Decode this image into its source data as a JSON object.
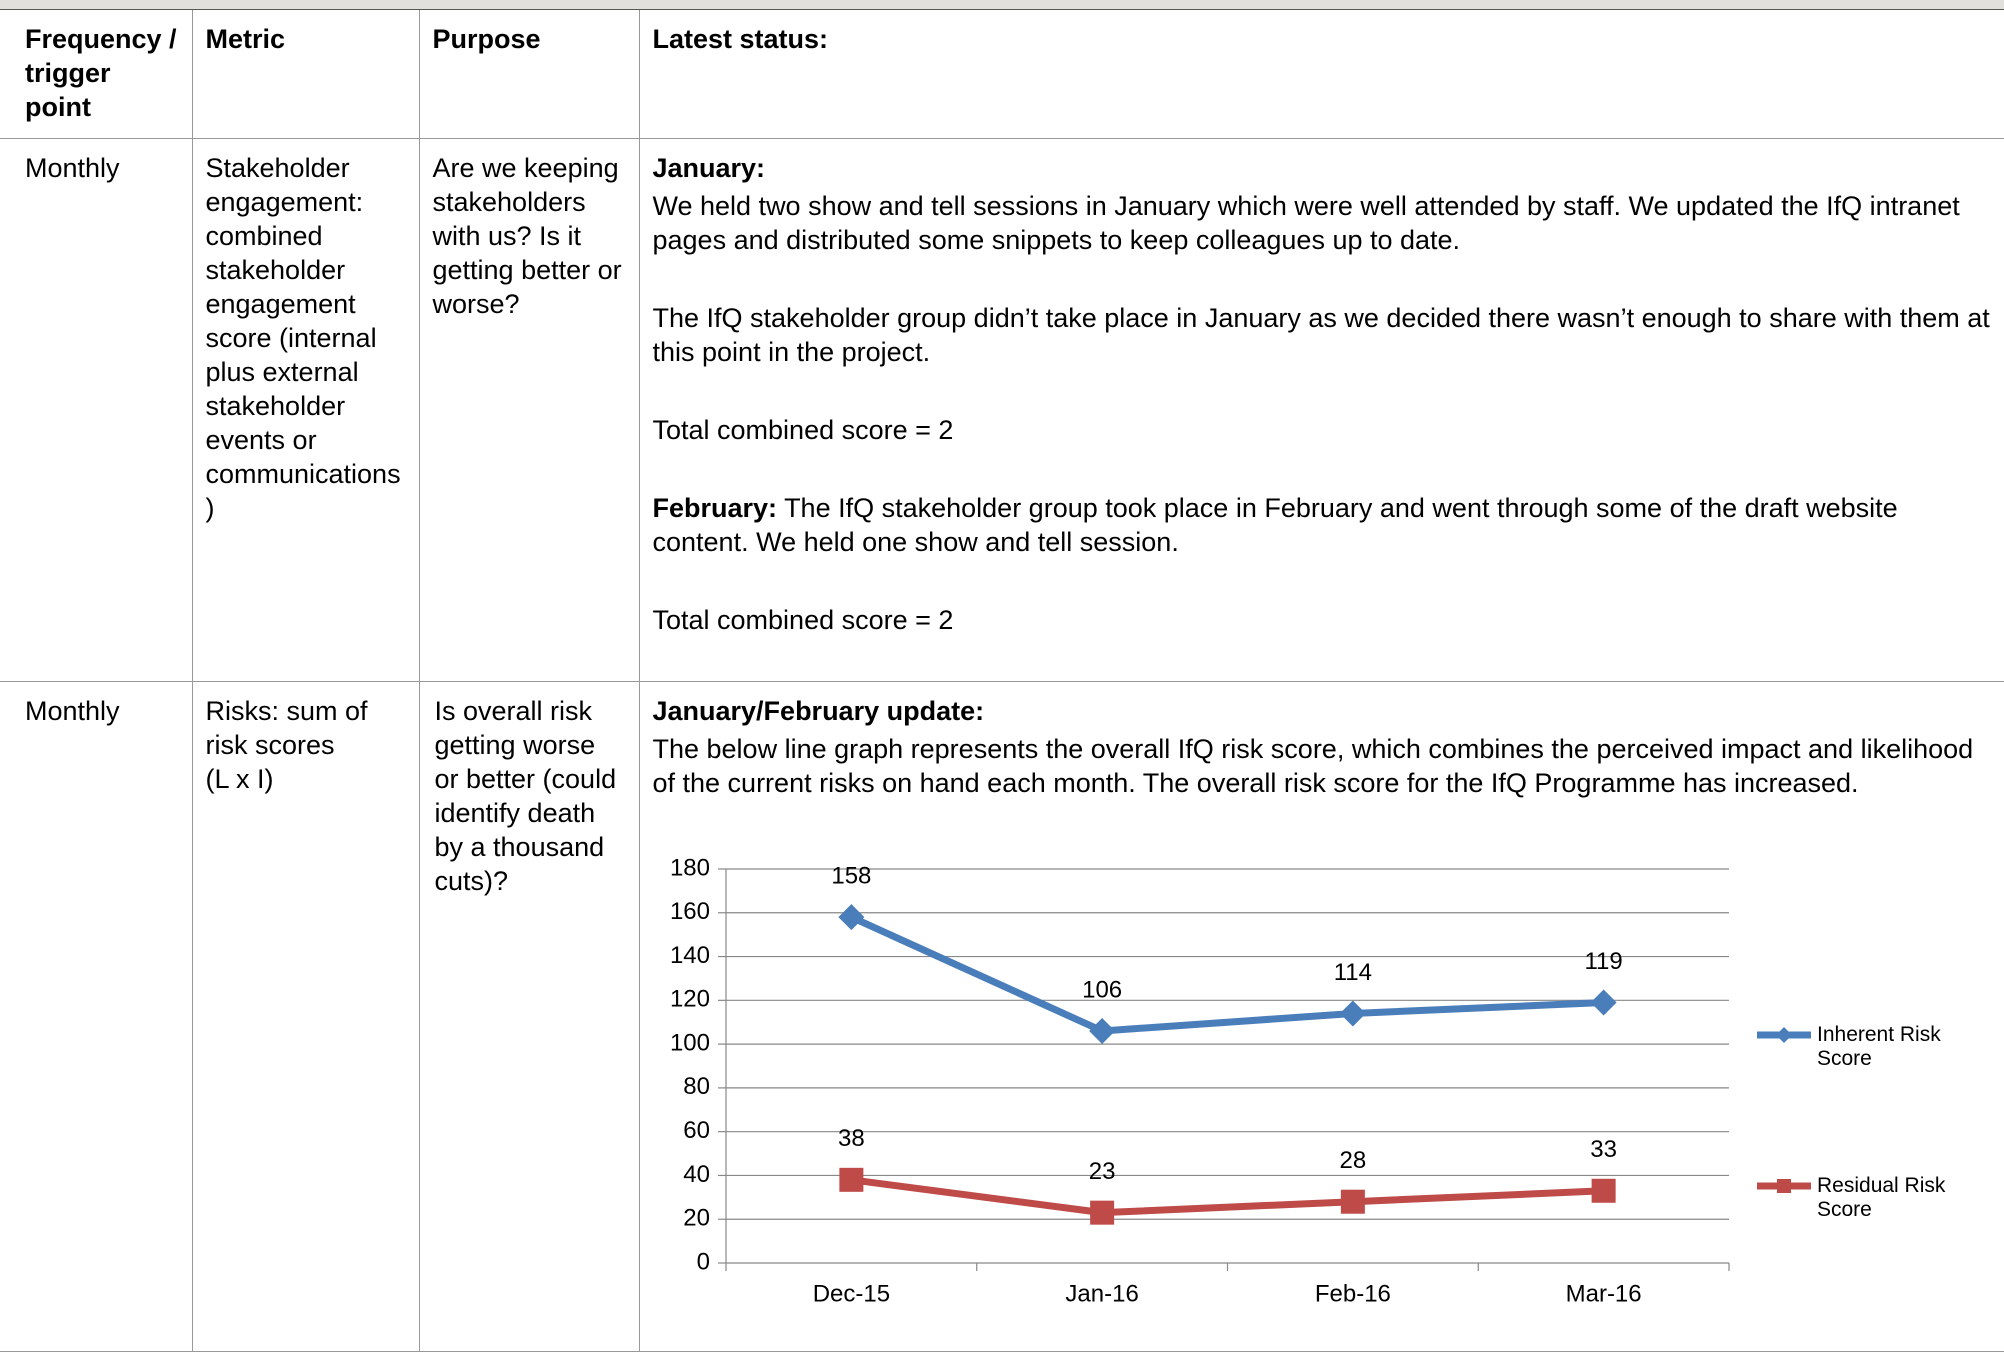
{
  "table": {
    "headers": [
      "Frequency / trigger point",
      "Metric",
      "Purpose",
      "Latest status:"
    ],
    "rows": [
      {
        "frequency": "Monthly",
        "metric": "Stakeholder engagement: combined stakeholder engagement score (internal plus external stakeholder events or communications)",
        "purpose": "Are we keeping stakeholders with us? Is it getting better or worse?",
        "status": [
          {
            "label": "January:"
          },
          {
            "text": "We held two show and tell sessions in January which were well attended by staff.  We updated the IfQ intranet pages and distributed some snippets to keep colleagues up to date."
          },
          {
            "text": "The IfQ stakeholder group didn’t take place in January as we decided there wasn’t enough to share with them at this point in the project."
          },
          {
            "text": "Total combined score = 2"
          },
          {
            "label": "February:",
            "text": "The IfQ stakeholder group took place in February and went through some of the draft website content.  We held one show and tell session."
          },
          {
            "text": "Total combined score = 2"
          }
        ]
      },
      {
        "frequency": "Monthly",
        "metric": "Risks: sum of risk scores",
        "metric_note": "(L x I)",
        "purpose": "Is overall risk getting worse or better (could identify death by a thousand cuts)?",
        "status": [
          {
            "label": "January/February update:"
          },
          {
            "text": "The below line graph represents the overall IfQ risk score, which combines the perceived impact and likelihood of the current risks on hand each month. The overall risk score for the IfQ Programme has increased."
          }
        ]
      }
    ]
  },
  "chart_data": {
    "type": "line",
    "categories": [
      "Dec-15",
      "Jan-16",
      "Feb-16",
      "Mar-16"
    ],
    "series": [
      {
        "name": "Inherent Risk Score",
        "color": "#4a7ebb",
        "marker": "diamond",
        "values": [
          158,
          106,
          114,
          119
        ]
      },
      {
        "name": "Residual Risk Score",
        "color": "#be4b48",
        "marker": "square",
        "values": [
          38,
          23,
          28,
          33
        ]
      }
    ],
    "ylim": [
      0,
      180
    ],
    "yticks": [
      0,
      20,
      40,
      60,
      80,
      100,
      120,
      140,
      160,
      180
    ],
    "grid": true,
    "legend": "right"
  }
}
